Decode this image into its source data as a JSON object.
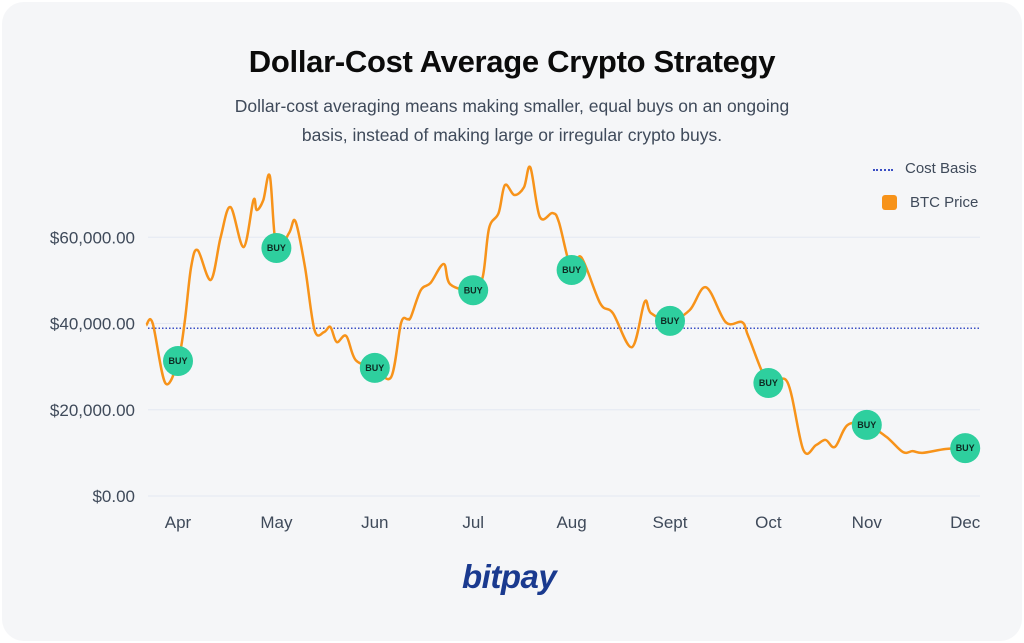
{
  "title": "Dollar-Cost Average Crypto Strategy",
  "subtitle": "Dollar-cost averaging means making smaller, equal buys on an ongoing basis, instead of making large or irregular crypto buys.",
  "logo": "bitpay",
  "colors": {
    "price": "#f7931a",
    "cost_basis": "#3b4fc4",
    "buy_marker": "#2ecf9e",
    "grid": "#e4e8f2",
    "logo": "#1a3a8f"
  },
  "chart_data": {
    "type": "line",
    "title": "Dollar-Cost Average Crypto Strategy",
    "xlabel": "",
    "ylabel": "",
    "x_ticks": [
      "Apr",
      "May",
      "Jun",
      "Jul",
      "Aug",
      "Sept",
      "Oct",
      "Nov",
      "Dec"
    ],
    "y_ticks": [
      "$0.00",
      "$20,000.00",
      "$40,000.00",
      "$60,000.00"
    ],
    "y_tick_values": [
      0,
      20000,
      40000,
      60000
    ],
    "ylim": [
      0,
      80000
    ],
    "grid": "horizontal",
    "legend": {
      "position": "top-right",
      "entries": [
        "Cost Basis",
        "BTC Price"
      ]
    },
    "series": [
      {
        "name": "BTC Price",
        "style": "smooth-line",
        "points": [
          [
            "03-22",
            39600
          ],
          [
            "03-24",
            40100
          ],
          [
            "03-28",
            26200
          ],
          [
            "04-01",
            31300
          ],
          [
            "04-03",
            40100
          ],
          [
            "04-05",
            53100
          ],
          [
            "04-07",
            57000
          ],
          [
            "04-11",
            50100
          ],
          [
            "04-14",
            60000
          ],
          [
            "04-17",
            67000
          ],
          [
            "04-21",
            57700
          ],
          [
            "04-24",
            68600
          ],
          [
            "04-25",
            66300
          ],
          [
            "04-27",
            68600
          ],
          [
            "04-29",
            74200
          ],
          [
            "05-01",
            57500
          ],
          [
            "05-05",
            61000
          ],
          [
            "05-07",
            63700
          ],
          [
            "05-10",
            53100
          ],
          [
            "05-13",
            38500
          ],
          [
            "05-16",
            38000
          ],
          [
            "05-18",
            39200
          ],
          [
            "05-20",
            35700
          ],
          [
            "05-23",
            37100
          ],
          [
            "05-26",
            31500
          ],
          [
            "06-01",
            29700
          ],
          [
            "06-06",
            27600
          ],
          [
            "06-09",
            40100
          ],
          [
            "06-11",
            41000
          ],
          [
            "06-12",
            41500
          ],
          [
            "06-15",
            47700
          ],
          [
            "06-18",
            49400
          ],
          [
            "06-22",
            53800
          ],
          [
            "06-24",
            49100
          ],
          [
            "07-01",
            47700
          ],
          [
            "07-04",
            50800
          ],
          [
            "07-06",
            62100
          ],
          [
            "07-09",
            65600
          ],
          [
            "07-11",
            72100
          ],
          [
            "07-14",
            69800
          ],
          [
            "07-17",
            71600
          ],
          [
            "07-19",
            76200
          ],
          [
            "07-22",
            64700
          ],
          [
            "07-26",
            65600
          ],
          [
            "07-28",
            63500
          ],
          [
            "08-01",
            52400
          ],
          [
            "08-04",
            55400
          ],
          [
            "08-10",
            44700
          ],
          [
            "08-14",
            42400
          ],
          [
            "08-20",
            34500
          ],
          [
            "08-24",
            45000
          ],
          [
            "08-26",
            42400
          ],
          [
            "09-01",
            40600
          ],
          [
            "09-07",
            43100
          ],
          [
            "09-12",
            48400
          ],
          [
            "09-18",
            40300
          ],
          [
            "09-23",
            40300
          ],
          [
            "09-25",
            36800
          ],
          [
            "10-01",
            26200
          ],
          [
            "10-07",
            26400
          ],
          [
            "10-12",
            10700
          ],
          [
            "10-16",
            11800
          ],
          [
            "10-19",
            13000
          ],
          [
            "10-22",
            11400
          ],
          [
            "10-26",
            16500
          ],
          [
            "11-01",
            16500
          ],
          [
            "11-07",
            13700
          ],
          [
            "11-12",
            10200
          ],
          [
            "11-15",
            10400
          ],
          [
            "11-18",
            10000
          ],
          [
            "11-25",
            10900
          ],
          [
            "12-01",
            11100
          ]
        ]
      },
      {
        "name": "Cost Basis",
        "style": "dotted-horizontal",
        "value": 38900
      }
    ],
    "annotations": {
      "label": "BUY",
      "buy_dates": [
        "04-01",
        "05-01",
        "06-01",
        "07-01",
        "08-01",
        "09-01",
        "10-01",
        "11-01",
        "12-01"
      ]
    }
  }
}
